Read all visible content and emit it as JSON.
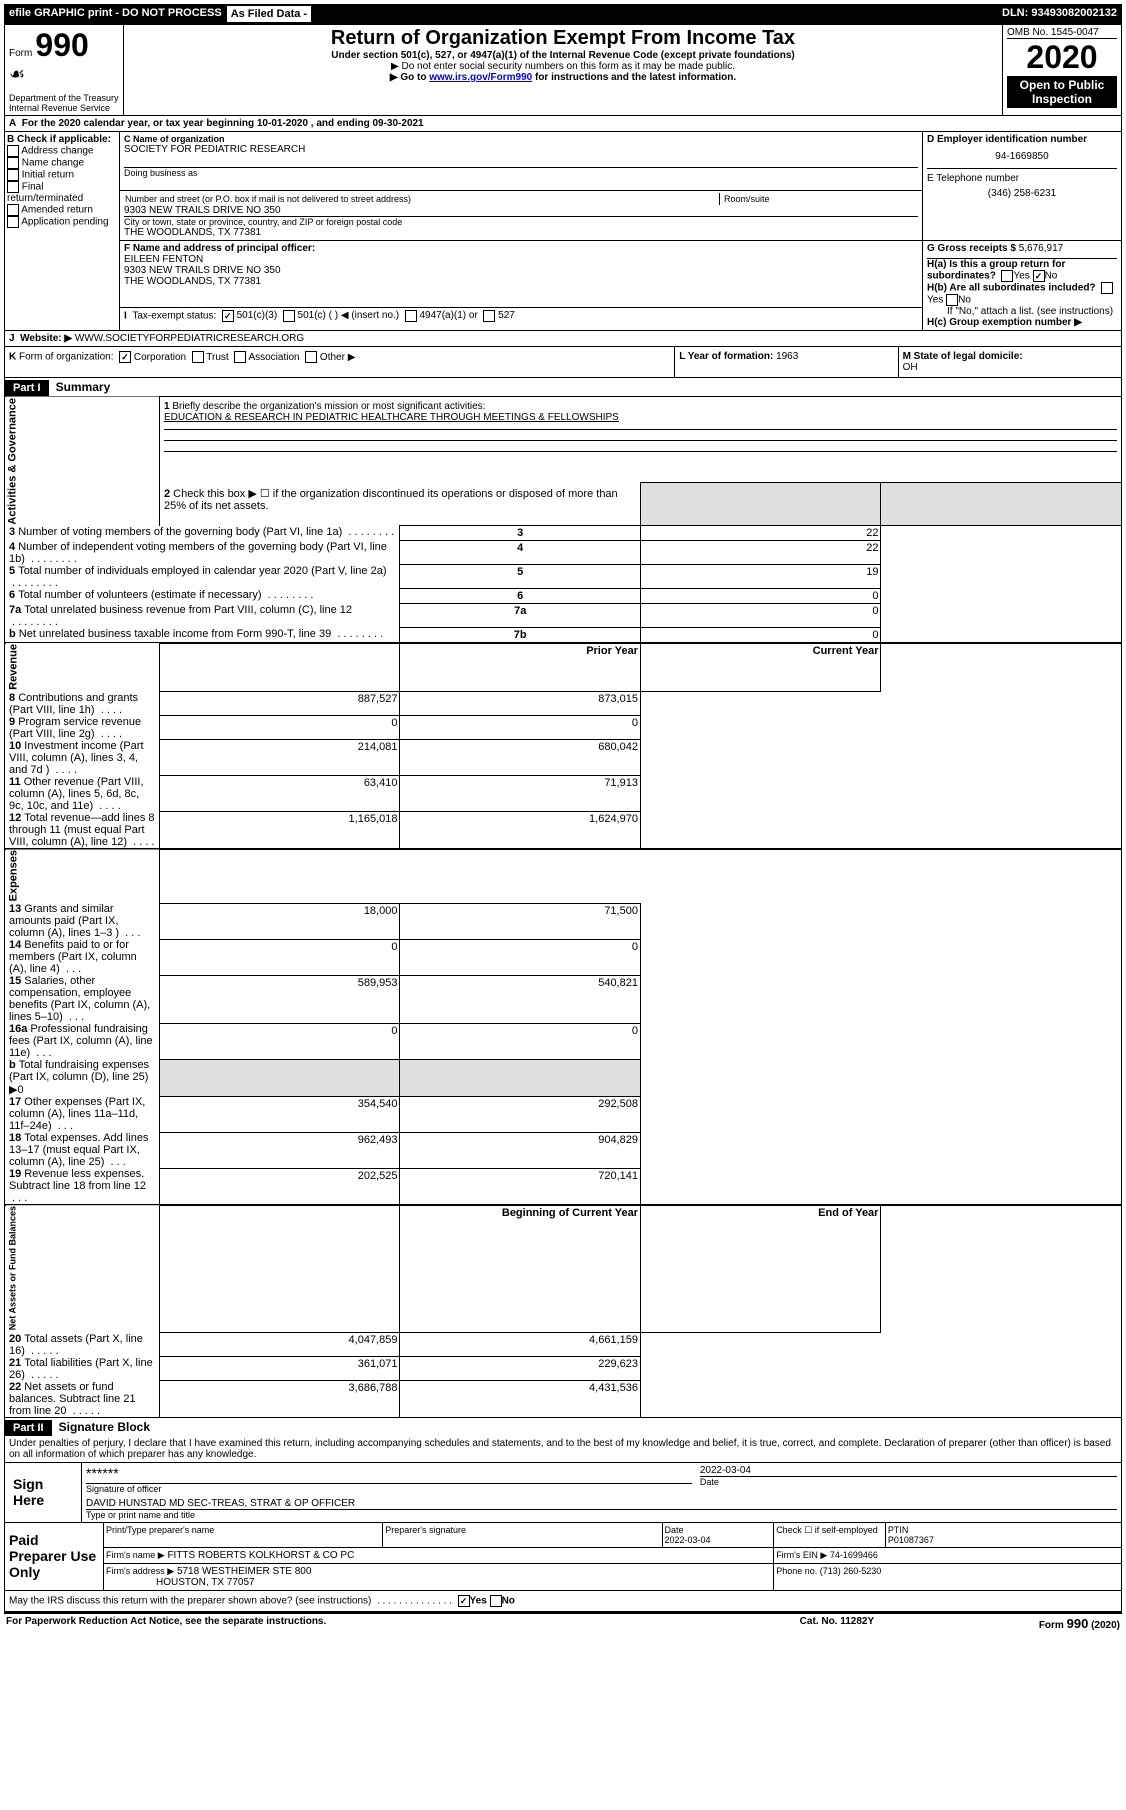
{
  "top_bar": {
    "left": "efile GRAPHIC print - DO NOT PROCESS",
    "mid": "As Filed Data -",
    "dln": "DLN: 93493082002132"
  },
  "header": {
    "form_label": "Form",
    "form_number": "990",
    "dept": "Department of the Treasury\nInternal Revenue Service",
    "title": "Return of Organization Exempt From Income Tax",
    "subtitle": "Under section 501(c), 527, or 4947(a)(1) of the Internal Revenue Code (except private foundations)",
    "note1": "▶ Do not enter social security numbers on this form as it may be made public.",
    "note2_pre": "▶ Go to ",
    "note2_link": "www.irs.gov/Form990",
    "note2_post": " for instructions and the latest information.",
    "omb": "OMB No. 1545-0047",
    "year": "2020",
    "open_public": "Open to Public Inspection"
  },
  "line_A": "For the 2020 calendar year, or tax year beginning 10-01-2020   , and ending 09-30-2021",
  "box_B": {
    "title": "B Check if applicable:",
    "items": [
      "Address change",
      "Name change",
      "Initial return",
      "Final return/terminated",
      "Amended return",
      "Application pending"
    ]
  },
  "box_C": {
    "label": "C Name of organization",
    "name": "SOCIETY FOR PEDIATRIC RESEARCH",
    "dba_label": "Doing business as",
    "street_label": "Number and street (or P.O. box if mail is not delivered to street address)",
    "room_label": "Room/suite",
    "street": "9303 NEW TRAILS DRIVE NO 350",
    "city_label": "City or town, state or province, country, and ZIP or foreign postal code",
    "city": "THE WOODLANDS, TX  77381"
  },
  "box_D": {
    "label": "D Employer identification number",
    "value": "94-1669850"
  },
  "box_E": {
    "label": "E Telephone number",
    "value": "(346) 258-6231"
  },
  "box_F": {
    "label": "F  Name and address of principal officer:",
    "name": "EILEEN FENTON",
    "addr1": "9303 NEW TRAILS DRIVE NO 350",
    "addr2": "THE WOODLANDS, TX  77381"
  },
  "box_G": {
    "label": "G Gross receipts $",
    "value": "5,676,917"
  },
  "box_H": {
    "a": "H(a)  Is this a group return for subordinates?",
    "b": "H(b)  Are all subordinates included?",
    "note": "If \"No,\" attach a list. (see instructions)",
    "c": "H(c)  Group exemption number ▶"
  },
  "line_I": "Tax-exempt status:",
  "line_I_opts": [
    "501(c)(3)",
    "501(c) (   ) ◀ (insert no.)",
    "4947(a)(1) or",
    "527"
  ],
  "line_J": {
    "label": "Website: ▶",
    "value": "WWW.SOCIETYFORPEDIATRICRESEARCH.ORG"
  },
  "line_K": "Form of organization:",
  "line_K_opts": [
    "Corporation",
    "Trust",
    "Association",
    "Other ▶"
  ],
  "line_L": {
    "label": "L Year of formation:",
    "value": "1963"
  },
  "line_M": {
    "label": "M State of legal domicile:",
    "value": "OH"
  },
  "part1": {
    "header": "Part I",
    "title": "Summary"
  },
  "summary": {
    "q1": "Briefly describe the organization's mission or most significant activities:",
    "q1_val": "EDUCATION & RESEARCH IN PEDIATRIC HEALTHCARE THROUGH MEETINGS & FELLOWSHIPS",
    "q2": "Check this box ▶ ☐ if the organization discontinued its operations or disposed of more than 25% of its net assets.",
    "rows": [
      {
        "n": "3",
        "t": "Number of voting members of the governing body (Part VI, line 1a)",
        "k": "3",
        "v": "22"
      },
      {
        "n": "4",
        "t": "Number of independent voting members of the governing body (Part VI, line 1b)",
        "k": "4",
        "v": "22"
      },
      {
        "n": "5",
        "t": "Total number of individuals employed in calendar year 2020 (Part V, line 2a)",
        "k": "5",
        "v": "19"
      },
      {
        "n": "6",
        "t": "Total number of volunteers (estimate if necessary)",
        "k": "6",
        "v": "0"
      },
      {
        "n": "7a",
        "t": "Total unrelated business revenue from Part VIII, column (C), line 12",
        "k": "7a",
        "v": "0"
      },
      {
        "n": "b",
        "t": "Net unrelated business taxable income from Form 990-T, line 39",
        "k": "7b",
        "v": "0"
      }
    ],
    "col_prior": "Prior Year",
    "col_current": "Current Year",
    "rev_rows": [
      {
        "n": "8",
        "t": "Contributions and grants (Part VIII, line 1h)",
        "p": "887,527",
        "c": "873,015"
      },
      {
        "n": "9",
        "t": "Program service revenue (Part VIII, line 2g)",
        "p": "0",
        "c": "0"
      },
      {
        "n": "10",
        "t": "Investment income (Part VIII, column (A), lines 3, 4, and 7d )",
        "p": "214,081",
        "c": "680,042"
      },
      {
        "n": "11",
        "t": "Other revenue (Part VIII, column (A), lines 5, 6d, 8c, 9c, 10c, and 11e)",
        "p": "63,410",
        "c": "71,913"
      },
      {
        "n": "12",
        "t": "Total revenue—add lines 8 through 11 (must equal Part VIII, column (A), line 12)",
        "p": "1,165,018",
        "c": "1,624,970"
      }
    ],
    "exp_rows": [
      {
        "n": "13",
        "t": "Grants and similar amounts paid (Part IX, column (A), lines 1–3 )",
        "p": "18,000",
        "c": "71,500"
      },
      {
        "n": "14",
        "t": "Benefits paid to or for members (Part IX, column (A), line 4)",
        "p": "0",
        "c": "0"
      },
      {
        "n": "15",
        "t": "Salaries, other compensation, employee benefits (Part IX, column (A), lines 5–10)",
        "p": "589,953",
        "c": "540,821"
      },
      {
        "n": "16a",
        "t": "Professional fundraising fees (Part IX, column (A), line 11e)",
        "p": "0",
        "c": "0"
      },
      {
        "n": "b",
        "t": "Total fundraising expenses (Part IX, column (D), line 25) ▶0",
        "p": "",
        "c": ""
      },
      {
        "n": "17",
        "t": "Other expenses (Part IX, column (A), lines 11a–11d, 11f–24e)",
        "p": "354,540",
        "c": "292,508"
      },
      {
        "n": "18",
        "t": "Total expenses. Add lines 13–17 (must equal Part IX, column (A), line 25)",
        "p": "962,493",
        "c": "904,829"
      },
      {
        "n": "19",
        "t": "Revenue less expenses. Subtract line 18 from line 12",
        "p": "202,525",
        "c": "720,141"
      }
    ],
    "col_begin": "Beginning of Current Year",
    "col_end": "End of Year",
    "net_rows": [
      {
        "n": "20",
        "t": "Total assets (Part X, line 16)",
        "p": "4,047,859",
        "c": "4,661,159"
      },
      {
        "n": "21",
        "t": "Total liabilities (Part X, line 26)",
        "p": "361,071",
        "c": "229,623"
      },
      {
        "n": "22",
        "t": "Net assets or fund balances. Subtract line 21 from line 20",
        "p": "3,686,788",
        "c": "4,431,536"
      }
    ]
  },
  "side_labels": {
    "gov": "Activities & Governance",
    "rev": "Revenue",
    "exp": "Expenses",
    "net": "Net Assets or Fund Balances"
  },
  "part2": {
    "header": "Part II",
    "title": "Signature Block"
  },
  "sig": {
    "declaration": "Under penalties of perjury, I declare that I have examined this return, including accompanying schedules and statements, and to the best of my knowledge and belief, it is true, correct, and complete. Declaration of preparer (other than officer) is based on all information of which preparer has any knowledge.",
    "sign_here": "Sign Here",
    "stars": "******",
    "sig_officer": "Signature of officer",
    "date_label": "Date",
    "date_val": "2022-03-04",
    "officer": "DAVID HUNSTAD MD  SEC-TREAS, STRAT & OP OFFICER",
    "type_name": "Type or print name and title",
    "paid": "Paid Preparer Use Only",
    "print_label": "Print/Type preparer's name",
    "prep_sig_label": "Preparer's signature",
    "prep_date": "2022-03-04",
    "check_self": "Check ☐ if self-employed",
    "ptin_label": "PTIN",
    "ptin": "P01087367",
    "firm_name_label": "Firm's name    ▶",
    "firm_name": "FITTS ROBERTS KOLKHORST & CO PC",
    "firm_ein_label": "Firm's EIN ▶",
    "firm_ein": "74-1699466",
    "firm_addr_label": "Firm's address ▶",
    "firm_addr1": "5718 WESTHEIMER STE 800",
    "firm_addr2": "HOUSTON, TX 77057",
    "phone_label": "Phone no.",
    "phone": "(713) 260-5230",
    "discuss": "May the IRS discuss this return with the preparer shown above? (see instructions)"
  },
  "footer": {
    "left": "For Paperwork Reduction Act Notice, see the separate instructions.",
    "mid": "Cat. No. 11282Y",
    "right": "Form 990 (2020)"
  }
}
